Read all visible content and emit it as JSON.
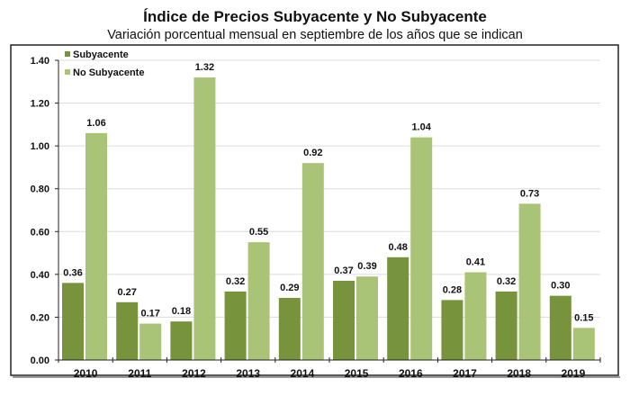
{
  "chart_data": {
    "type": "bar",
    "title": "Índice de Precios Subyacente y No Subyacente",
    "subtitle": "Variación porcentual mensual en septiembre de los años que se indican",
    "xlabel": "",
    "ylabel": "",
    "ylim": [
      0,
      1.4
    ],
    "yticks": [
      "0.00",
      "0.20",
      "0.40",
      "0.60",
      "0.80",
      "1.00",
      "1.20",
      "1.40"
    ],
    "grid": true,
    "legend_position": "top-left",
    "categories": [
      "2010",
      "2011",
      "2012",
      "2013",
      "2014",
      "2015",
      "2016",
      "2017",
      "2018",
      "2019"
    ],
    "series": [
      {
        "name": "Subyacente",
        "color": "#77933c",
        "values": [
          0.36,
          0.27,
          0.18,
          0.32,
          0.29,
          0.37,
          0.48,
          0.28,
          0.32,
          0.3
        ]
      },
      {
        "name": "No Subyacente",
        "color": "#a9c476",
        "values": [
          1.06,
          0.17,
          1.32,
          0.55,
          0.92,
          0.39,
          1.04,
          0.41,
          0.73,
          0.15
        ]
      }
    ]
  }
}
